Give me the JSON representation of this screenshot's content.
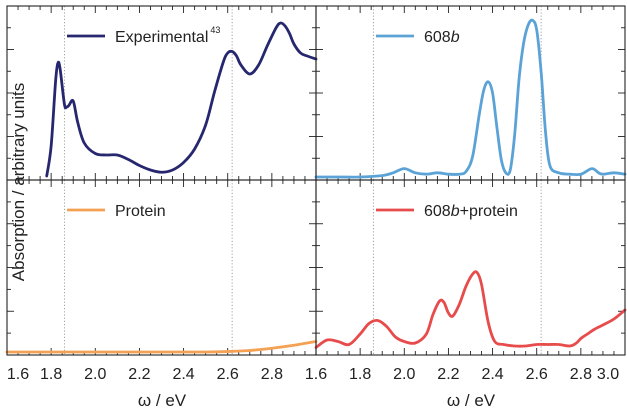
{
  "ylabel": "Absorption / arbitrary units",
  "chart_data": [
    {
      "type": "line",
      "panel": "top-left",
      "xlim": [
        1.6,
        3.0
      ],
      "xlabel": "",
      "ylabel": "",
      "grid": false,
      "legend_position": "top-left",
      "vlines": [
        1.86,
        2.62
      ],
      "series": [
        {
          "name": "Experimental",
          "name_superscript": "43",
          "color": "#26276e",
          "x": [
            1.78,
            1.8,
            1.82,
            1.83,
            1.84,
            1.86,
            1.87,
            1.88,
            1.9,
            1.92,
            1.95,
            2.0,
            2.05,
            2.1,
            2.15,
            2.2,
            2.25,
            2.3,
            2.35,
            2.4,
            2.45,
            2.5,
            2.54,
            2.58,
            2.6,
            2.62,
            2.64,
            2.66,
            2.7,
            2.74,
            2.78,
            2.82,
            2.84,
            2.86,
            2.88,
            2.9,
            2.93,
            2.96,
            3.0
          ],
          "y": [
            0.0,
            0.2,
            0.63,
            0.75,
            0.72,
            0.48,
            0.46,
            0.47,
            0.5,
            0.36,
            0.22,
            0.15,
            0.14,
            0.14,
            0.11,
            0.07,
            0.04,
            0.025,
            0.04,
            0.09,
            0.18,
            0.34,
            0.56,
            0.76,
            0.82,
            0.83,
            0.8,
            0.74,
            0.68,
            0.74,
            0.87,
            0.99,
            1.02,
            1.0,
            0.95,
            0.88,
            0.82,
            0.8,
            0.78
          ]
        }
      ]
    },
    {
      "type": "line",
      "panel": "top-right",
      "xlim": [
        1.6,
        3.0
      ],
      "xlabel": "",
      "ylabel": "",
      "grid": false,
      "legend_position": "top-left",
      "vlines": [
        1.86,
        2.62
      ],
      "series": [
        {
          "name": "608",
          "name_italic_suffix": "b",
          "color": "#5ba3d6",
          "x": [
            1.6,
            1.7,
            1.8,
            1.9,
            1.95,
            2.0,
            2.05,
            2.1,
            2.15,
            2.2,
            2.25,
            2.28,
            2.31,
            2.34,
            2.36,
            2.38,
            2.4,
            2.42,
            2.44,
            2.46,
            2.48,
            2.5,
            2.52,
            2.54,
            2.56,
            2.58,
            2.6,
            2.62,
            2.64,
            2.66,
            2.7,
            2.75,
            2.8,
            2.85,
            2.88,
            2.9,
            2.95,
            3.0
          ],
          "y": [
            0.0,
            0.0,
            0.0,
            0.01,
            0.03,
            0.06,
            0.03,
            0.02,
            0.03,
            0.02,
            0.02,
            0.04,
            0.15,
            0.45,
            0.62,
            0.68,
            0.6,
            0.35,
            0.12,
            0.03,
            0.05,
            0.3,
            0.7,
            0.95,
            1.08,
            1.12,
            1.05,
            0.75,
            0.32,
            0.08,
            0.03,
            0.02,
            0.02,
            0.06,
            0.03,
            0.02,
            0.03,
            0.02
          ]
        }
      ]
    },
    {
      "type": "line",
      "panel": "bottom-left",
      "xlim": [
        1.6,
        3.0
      ],
      "xlabel": "ω / eV",
      "ylabel": "",
      "grid": false,
      "legend_position": "top-left",
      "vlines": [
        1.86,
        2.62
      ],
      "series": [
        {
          "name": "Protein",
          "color": "#f4a153",
          "x": [
            1.6,
            1.8,
            2.0,
            2.2,
            2.4,
            2.5,
            2.6,
            2.7,
            2.8,
            2.9,
            3.0
          ],
          "y": [
            0.0,
            0.0,
            0.0,
            0.0,
            0.0,
            0.0,
            0.003,
            0.01,
            0.025,
            0.045,
            0.07
          ]
        }
      ]
    },
    {
      "type": "line",
      "panel": "bottom-right",
      "xlim": [
        1.6,
        3.0
      ],
      "xlabel": "ω / eV",
      "ylabel": "",
      "grid": false,
      "legend_position": "top-left",
      "vlines": [
        1.86,
        2.62
      ],
      "series": [
        {
          "name": "608",
          "name_italic_suffix": "b",
          "name_after": "+protein",
          "color": "#e84b4b",
          "x": [
            1.6,
            1.65,
            1.7,
            1.75,
            1.8,
            1.84,
            1.88,
            1.92,
            1.96,
            2.0,
            2.05,
            2.1,
            2.13,
            2.16,
            2.18,
            2.2,
            2.22,
            2.25,
            2.28,
            2.31,
            2.33,
            2.35,
            2.38,
            2.41,
            2.45,
            2.5,
            2.55,
            2.6,
            2.65,
            2.7,
            2.75,
            2.78,
            2.8,
            2.83,
            2.86,
            2.9,
            2.95,
            3.0
          ],
          "y": [
            0.03,
            0.08,
            0.07,
            0.05,
            0.12,
            0.19,
            0.21,
            0.17,
            0.1,
            0.07,
            0.06,
            0.12,
            0.25,
            0.34,
            0.33,
            0.26,
            0.24,
            0.32,
            0.44,
            0.52,
            0.53,
            0.45,
            0.2,
            0.07,
            0.05,
            0.04,
            0.04,
            0.05,
            0.05,
            0.05,
            0.04,
            0.06,
            0.09,
            0.12,
            0.15,
            0.18,
            0.22,
            0.28
          ]
        }
      ]
    }
  ],
  "x_ticks": [
    "1.6",
    "1.8",
    "2.0",
    "2.2",
    "2.4",
    "2.6",
    "2.8",
    "3.0"
  ]
}
